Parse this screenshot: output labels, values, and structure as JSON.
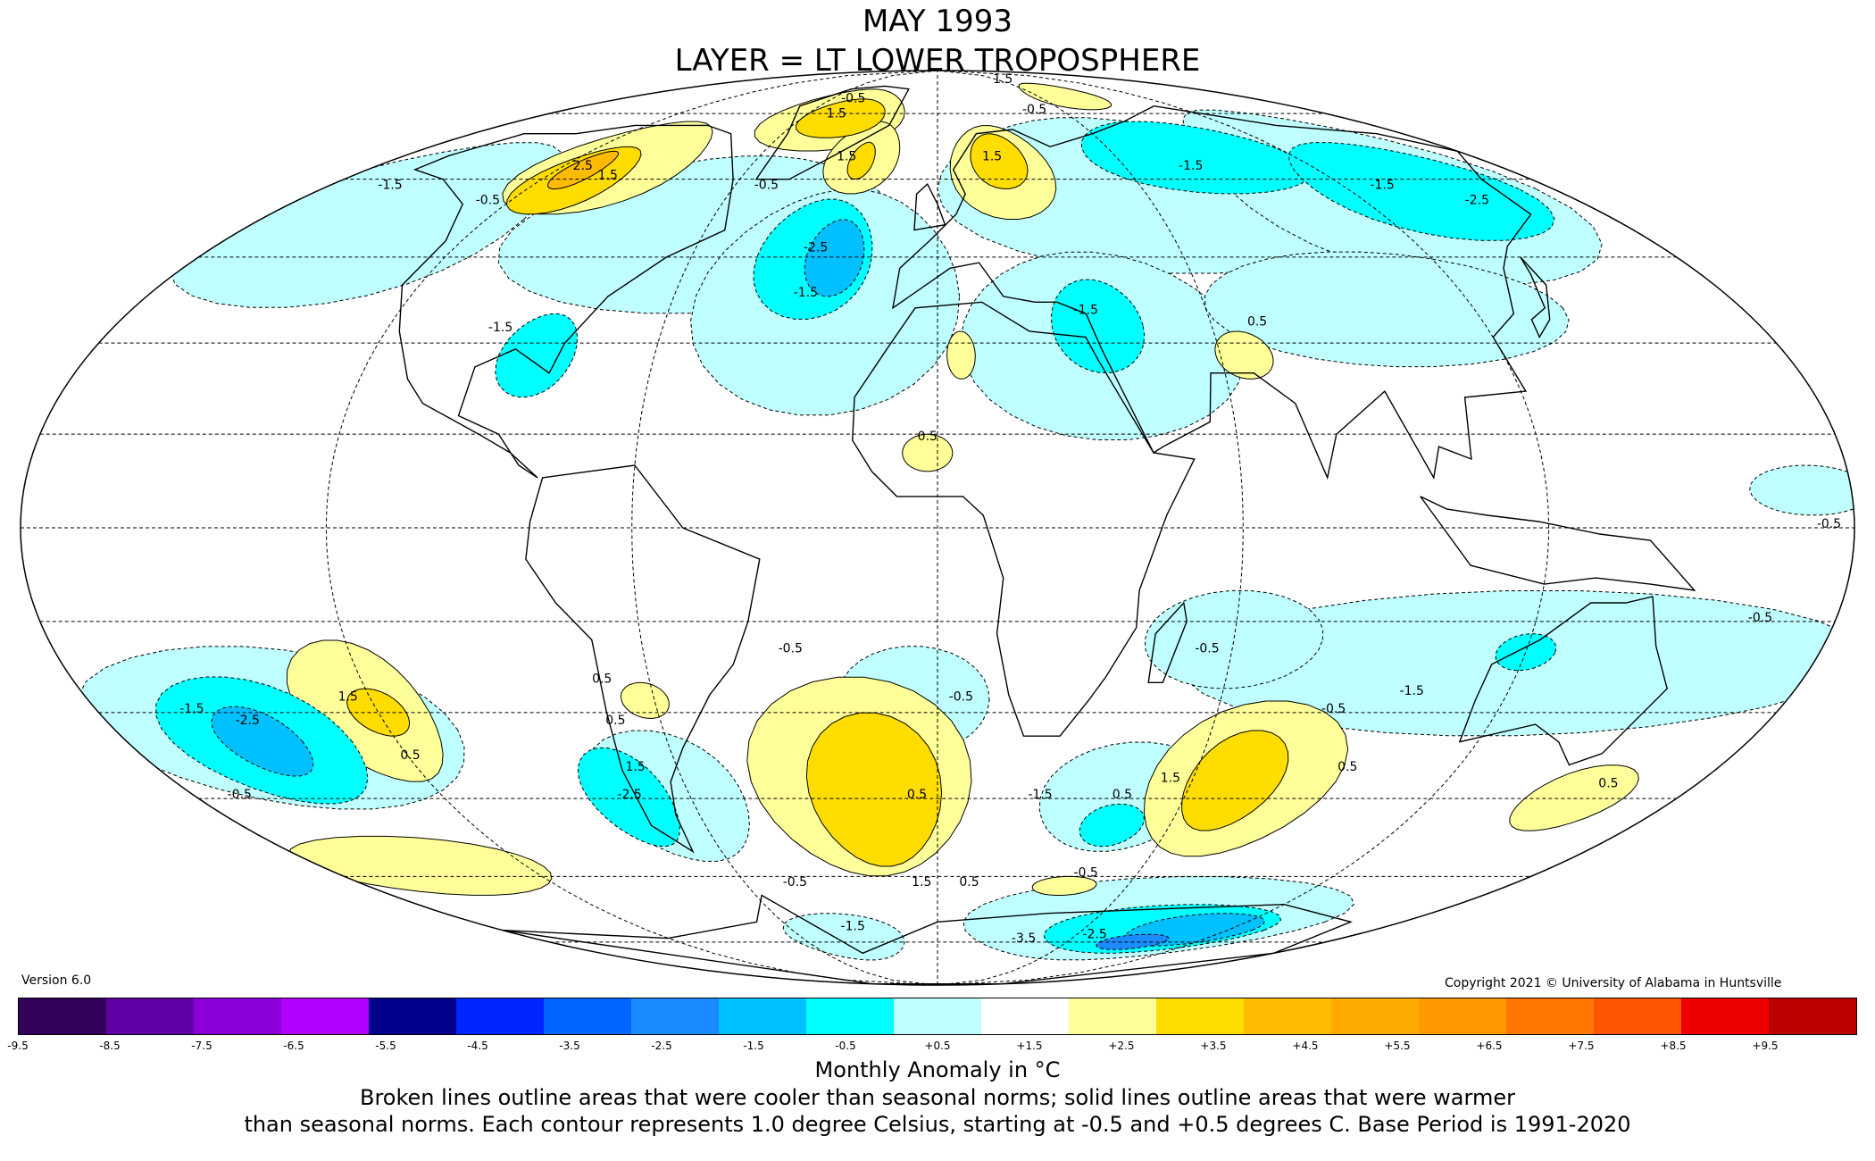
{
  "title": {
    "line1": "MAY 1993",
    "line2": "LAYER = LT LOWER TROPOSPHERE"
  },
  "version": "Version 6.0",
  "copyright": "Copyright 2021 © University of Alabama in Huntsville",
  "colorbar": {
    "colors": [
      "#33005c",
      "#5e00a6",
      "#8a00d6",
      "#b300ff",
      "#00008c",
      "#0026ff",
      "#0066ff",
      "#1a8cff",
      "#00c0ff",
      "#00ffff",
      "#bfffff",
      "#ffffff",
      "#ffff99",
      "#ffdd00",
      "#ffbb00",
      "#ffaa00",
      "#ff9900",
      "#ff7700",
      "#ff5500",
      "#ee0000",
      "#bb0000"
    ],
    "ticks": [
      "-9.5",
      "-8.5",
      "-7.5",
      "-6.5",
      "-5.5",
      "-4.5",
      "-3.5",
      "-2.5",
      "-1.5",
      "-0.5",
      "+0.5",
      "+1.5",
      "+2.5",
      "+3.5",
      "+4.5",
      "+5.5",
      "+6.5",
      "+7.5",
      "+8.5",
      "+9.5"
    ]
  },
  "units": "Monthly Anomaly in °C",
  "caption": {
    "line1": "Broken lines outline areas that were cooler than seasonal norms; solid lines outline areas that were warmer",
    "line2": "than seasonal norms. Each contour represents 1.0 degree Celsius, starting at -0.5 and +0.5 degrees C. Base Period is 1991-2020"
  },
  "contour_labels": [
    "-0.5",
    "-1.5",
    "-2.5",
    "-3.5",
    "0.5",
    "1.5",
    "2.5"
  ],
  "regions": [
    {
      "id": "greenland-high",
      "level": "1.5",
      "lon": -45,
      "lat": 72
    },
    {
      "id": "canada-high",
      "level": "2.5",
      "lon": -110,
      "lat": 60
    },
    {
      "id": "scandinavia-high",
      "level": "1.5",
      "lon": 20,
      "lat": 62
    },
    {
      "id": "atlantic-low",
      "level": "-2.5",
      "lon": -20,
      "lat": 45
    },
    {
      "id": "siberia-low",
      "level": "-1.5",
      "lon": 85,
      "lat": 65
    },
    {
      "id": "east-asia-low",
      "level": "-1.5",
      "lon": 135,
      "lat": 55
    },
    {
      "id": "mediterranean-low",
      "level": "-1.5",
      "lon": 30,
      "lat": 38
    },
    {
      "id": "south-pacific-low",
      "level": "-2.5",
      "lon": -150,
      "lat": -35
    },
    {
      "id": "south-pacific-high",
      "level": "1.5",
      "lon": -120,
      "lat": -30
    },
    {
      "id": "south-atlantic-high",
      "level": "1.5",
      "lon": -20,
      "lat": -40
    },
    {
      "id": "indian-ocean-high",
      "level": "1.5",
      "lon": 70,
      "lat": -40
    },
    {
      "id": "antarctic-low",
      "level": "-3.5",
      "lon": 85,
      "lat": -73
    }
  ]
}
